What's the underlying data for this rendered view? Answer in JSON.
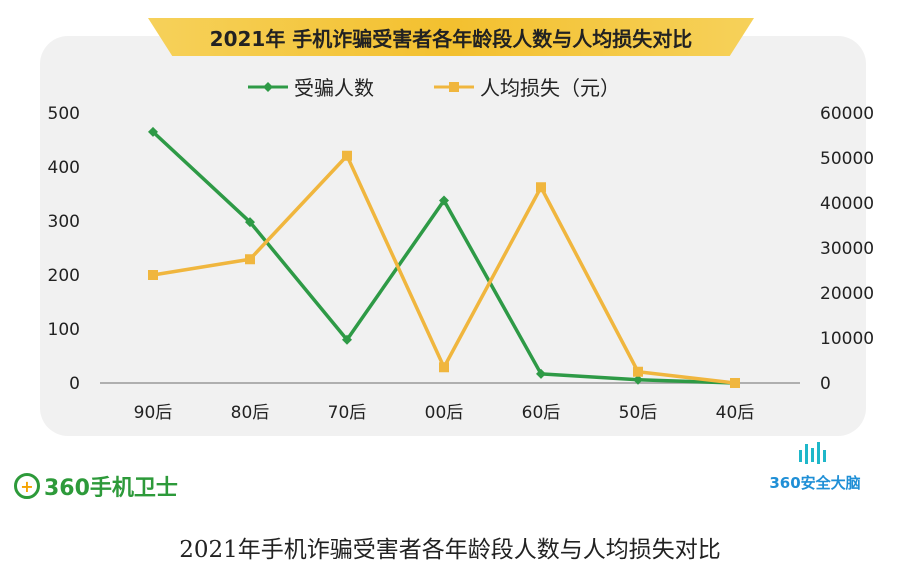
{
  "chart_data": {
    "type": "line",
    "title": "2021年 手机诈骗受害者各年龄段人数与人均损失对比",
    "categories": [
      "90后",
      "80后",
      "70后",
      "00后",
      "60后",
      "50后",
      "40后"
    ],
    "series": [
      {
        "name": "受骗人数",
        "axis": "left",
        "color": "#2e9a46",
        "marker": "diamond",
        "values": [
          465,
          298,
          80,
          338,
          17,
          6,
          0
        ]
      },
      {
        "name": "人均损失（元）",
        "axis": "right",
        "color": "#f0b63e",
        "marker": "square",
        "values": [
          24000,
          27500,
          50500,
          3500,
          43500,
          2500,
          0
        ]
      }
    ],
    "y_left": {
      "min": 0,
      "max": 500,
      "ticks": [
        0,
        100,
        200,
        300,
        400,
        500
      ]
    },
    "y_right": {
      "min": 0,
      "max": 60000,
      "ticks": [
        0,
        10000,
        20000,
        30000,
        40000,
        50000,
        60000
      ]
    },
    "grid": false,
    "legend": "top-center"
  },
  "branding": {
    "left_logo_text": "360手机卫士",
    "right_logo_text": "360安全大脑"
  },
  "caption": "2021年手机诈骗受害者各年龄段人数与人均损失对比"
}
